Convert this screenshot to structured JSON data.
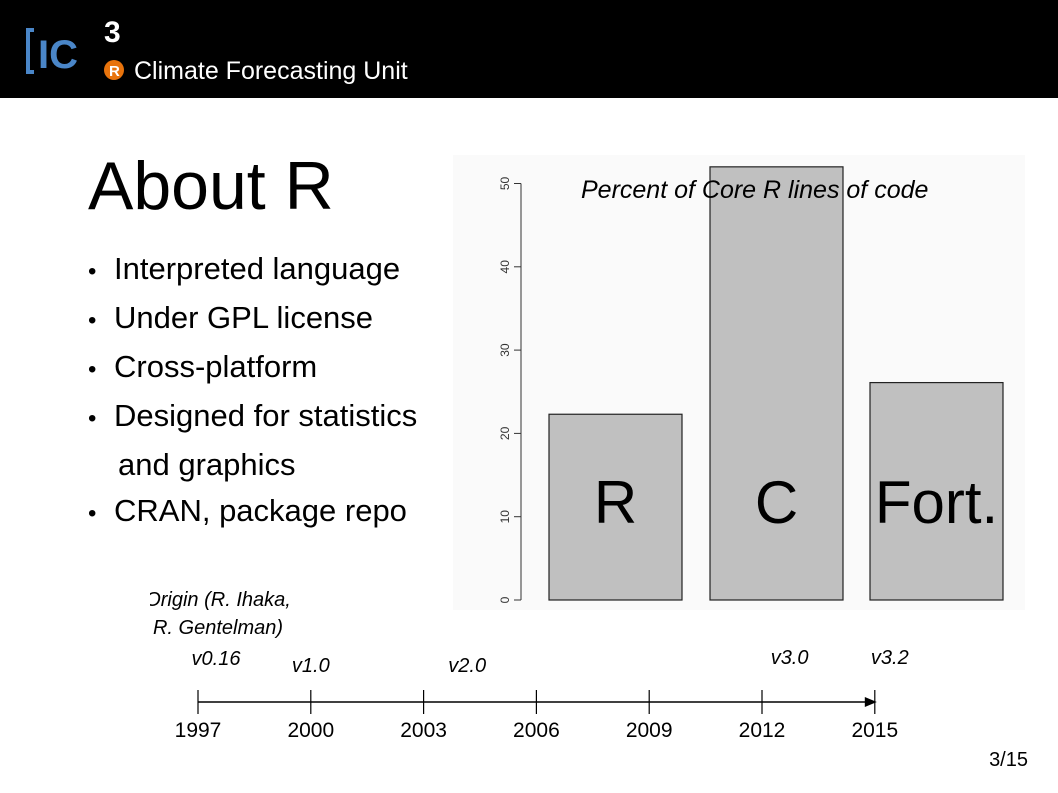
{
  "header": {
    "logo_text": "IC3R",
    "org_name": "Climate Forecasting Unit"
  },
  "slide": {
    "title": "About R",
    "bullets": [
      {
        "lines": [
          "Interpreted language"
        ]
      },
      {
        "lines": [
          "Under GPL license"
        ]
      },
      {
        "lines": [
          "Cross-platform"
        ]
      },
      {
        "lines": [
          "Designed for statistics",
          "and graphics"
        ]
      },
      {
        "lines": [
          "CRAN, package repo"
        ]
      }
    ],
    "page_number": "3/15"
  },
  "chart_data": [
    {
      "type": "bar",
      "title": "Percent of Core R lines of code",
      "categories": [
        "R",
        "C",
        "Fort."
      ],
      "values": [
        22.3,
        52,
        26.1
      ],
      "ylim": [
        0,
        53
      ],
      "yticks": [
        "0",
        "10",
        "20",
        "30",
        "40",
        "50"
      ],
      "bar_color": "#c0c0c0",
      "grid": false
    },
    {
      "type": "timeline",
      "ticks": [
        "1997",
        "2000",
        "2003",
        "2006",
        "2009",
        "2012",
        "2015"
      ],
      "xlim": [
        1997,
        2015
      ],
      "events": [
        {
          "year": 1997,
          "label": "v0.16",
          "note": [
            "Origin (R. Ihaka,",
            "R. Gentelman)"
          ]
        },
        {
          "year": 2000,
          "label": "v1.0"
        },
        {
          "year": 2004,
          "label": "v2.0"
        },
        {
          "year": 2013,
          "label": "v3.0"
        },
        {
          "year": 2015,
          "label": "v3.2"
        }
      ]
    }
  ]
}
